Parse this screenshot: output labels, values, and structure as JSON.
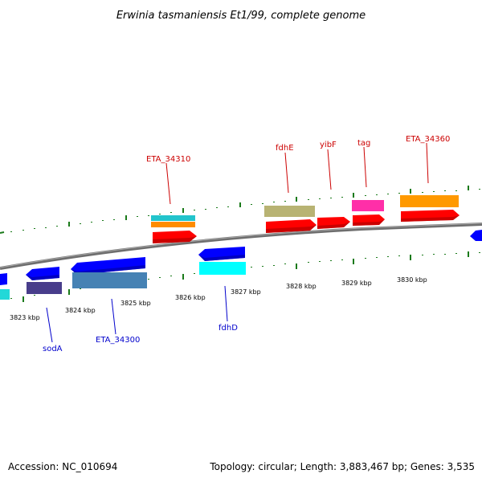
{
  "title": "Erwinia tasmaniensis Et1/99, complete genome",
  "footer": {
    "accession": "Accession: NC_010694",
    "topology": "Topology: circular; Length: 3,883,467 bp; Genes: 3,535"
  },
  "colors": {
    "backbone": "#808080",
    "tick": "#1a7a1a",
    "label_top": "#cc0000",
    "label_bottom": "#0000cc"
  },
  "kbp_ticks": [
    "3823 kbp",
    "3824 kbp",
    "3825 kbp",
    "3826 kbp",
    "3827 kbp",
    "3828 kbp",
    "3829 kbp",
    "3830 kbp"
  ],
  "genes_top": [
    {
      "name": "ETA_34310",
      "color": "#ff0000"
    },
    {
      "name": "fdhE",
      "color": "#ff0000"
    },
    {
      "name": "yibF",
      "color": "#ff0000"
    },
    {
      "name": "tag",
      "color": "#ff0000"
    },
    {
      "name": "ETA_34360",
      "color": "#ff0000"
    }
  ],
  "genes_bottom": [
    {
      "name": "sodA",
      "color": "#0000ff"
    },
    {
      "name": "ETA_34300",
      "color": "#0000ff"
    },
    {
      "name": "fdhD",
      "color": "#0000ff"
    }
  ]
}
